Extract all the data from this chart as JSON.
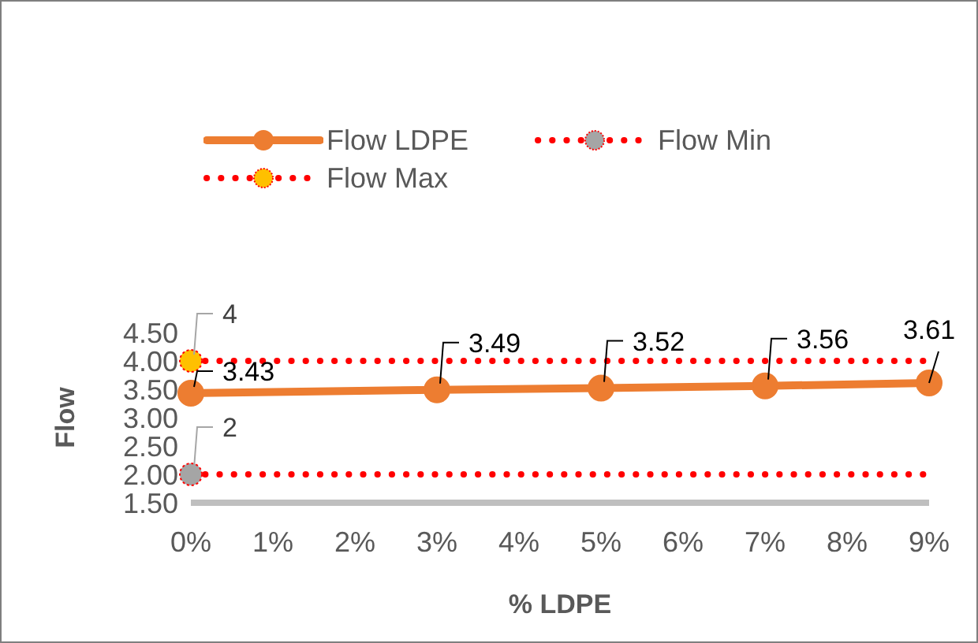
{
  "chart_data": {
    "type": "line",
    "xlabel": "% LDPE",
    "ylabel": "Flow",
    "xlim": [
      0,
      9
    ],
    "xticks": [
      {
        "value": 0,
        "label": "0%"
      },
      {
        "value": 1,
        "label": "1%"
      },
      {
        "value": 2,
        "label": "2%"
      },
      {
        "value": 3,
        "label": "3%"
      },
      {
        "value": 4,
        "label": "4%"
      },
      {
        "value": 5,
        "label": "5%"
      },
      {
        "value": 6,
        "label": "6%"
      },
      {
        "value": 7,
        "label": "7%"
      },
      {
        "value": 8,
        "label": "8%"
      },
      {
        "value": 9,
        "label": "9%"
      }
    ],
    "ylim": [
      1.5,
      4.5
    ],
    "yticks": [
      {
        "value": 1.5,
        "label": "1.50"
      },
      {
        "value": 2,
        "label": "2.00"
      },
      {
        "value": 2.5,
        "label": "2.50"
      },
      {
        "value": 3,
        "label": "3.00"
      },
      {
        "value": 3.5,
        "label": "3.50"
      },
      {
        "value": 4,
        "label": "4.00"
      },
      {
        "value": 4.5,
        "label": "4.50"
      }
    ],
    "grid": false,
    "legend": "top left",
    "marker": "circle",
    "series": [
      {
        "name": "Flow LDPE",
        "color": "#ed7d31",
        "line_style": "solid",
        "x": [
          0,
          3,
          5,
          7,
          9
        ],
        "values": [
          3.43,
          3.49,
          3.52,
          3.56,
          3.61
        ],
        "value_labels": [
          "3.43",
          "3.49",
          "3.52",
          "3.56",
          "3.61"
        ]
      },
      {
        "name": "Flow Min",
        "color": "#ff0000",
        "line_style": "dotted",
        "x": [
          0,
          9
        ],
        "values": [
          2,
          2
        ],
        "colors": [
          "#a5a5a5",
          null
        ],
        "value_labels": [
          "2",
          null
        ]
      },
      {
        "name": "Flow Max",
        "color": "#ff0000",
        "line_style": "dotted",
        "x": [
          0,
          9
        ],
        "values": [
          4,
          4
        ],
        "colors": [
          "#ffc000",
          null
        ],
        "value_labels": [
          "4",
          null
        ]
      }
    ]
  }
}
